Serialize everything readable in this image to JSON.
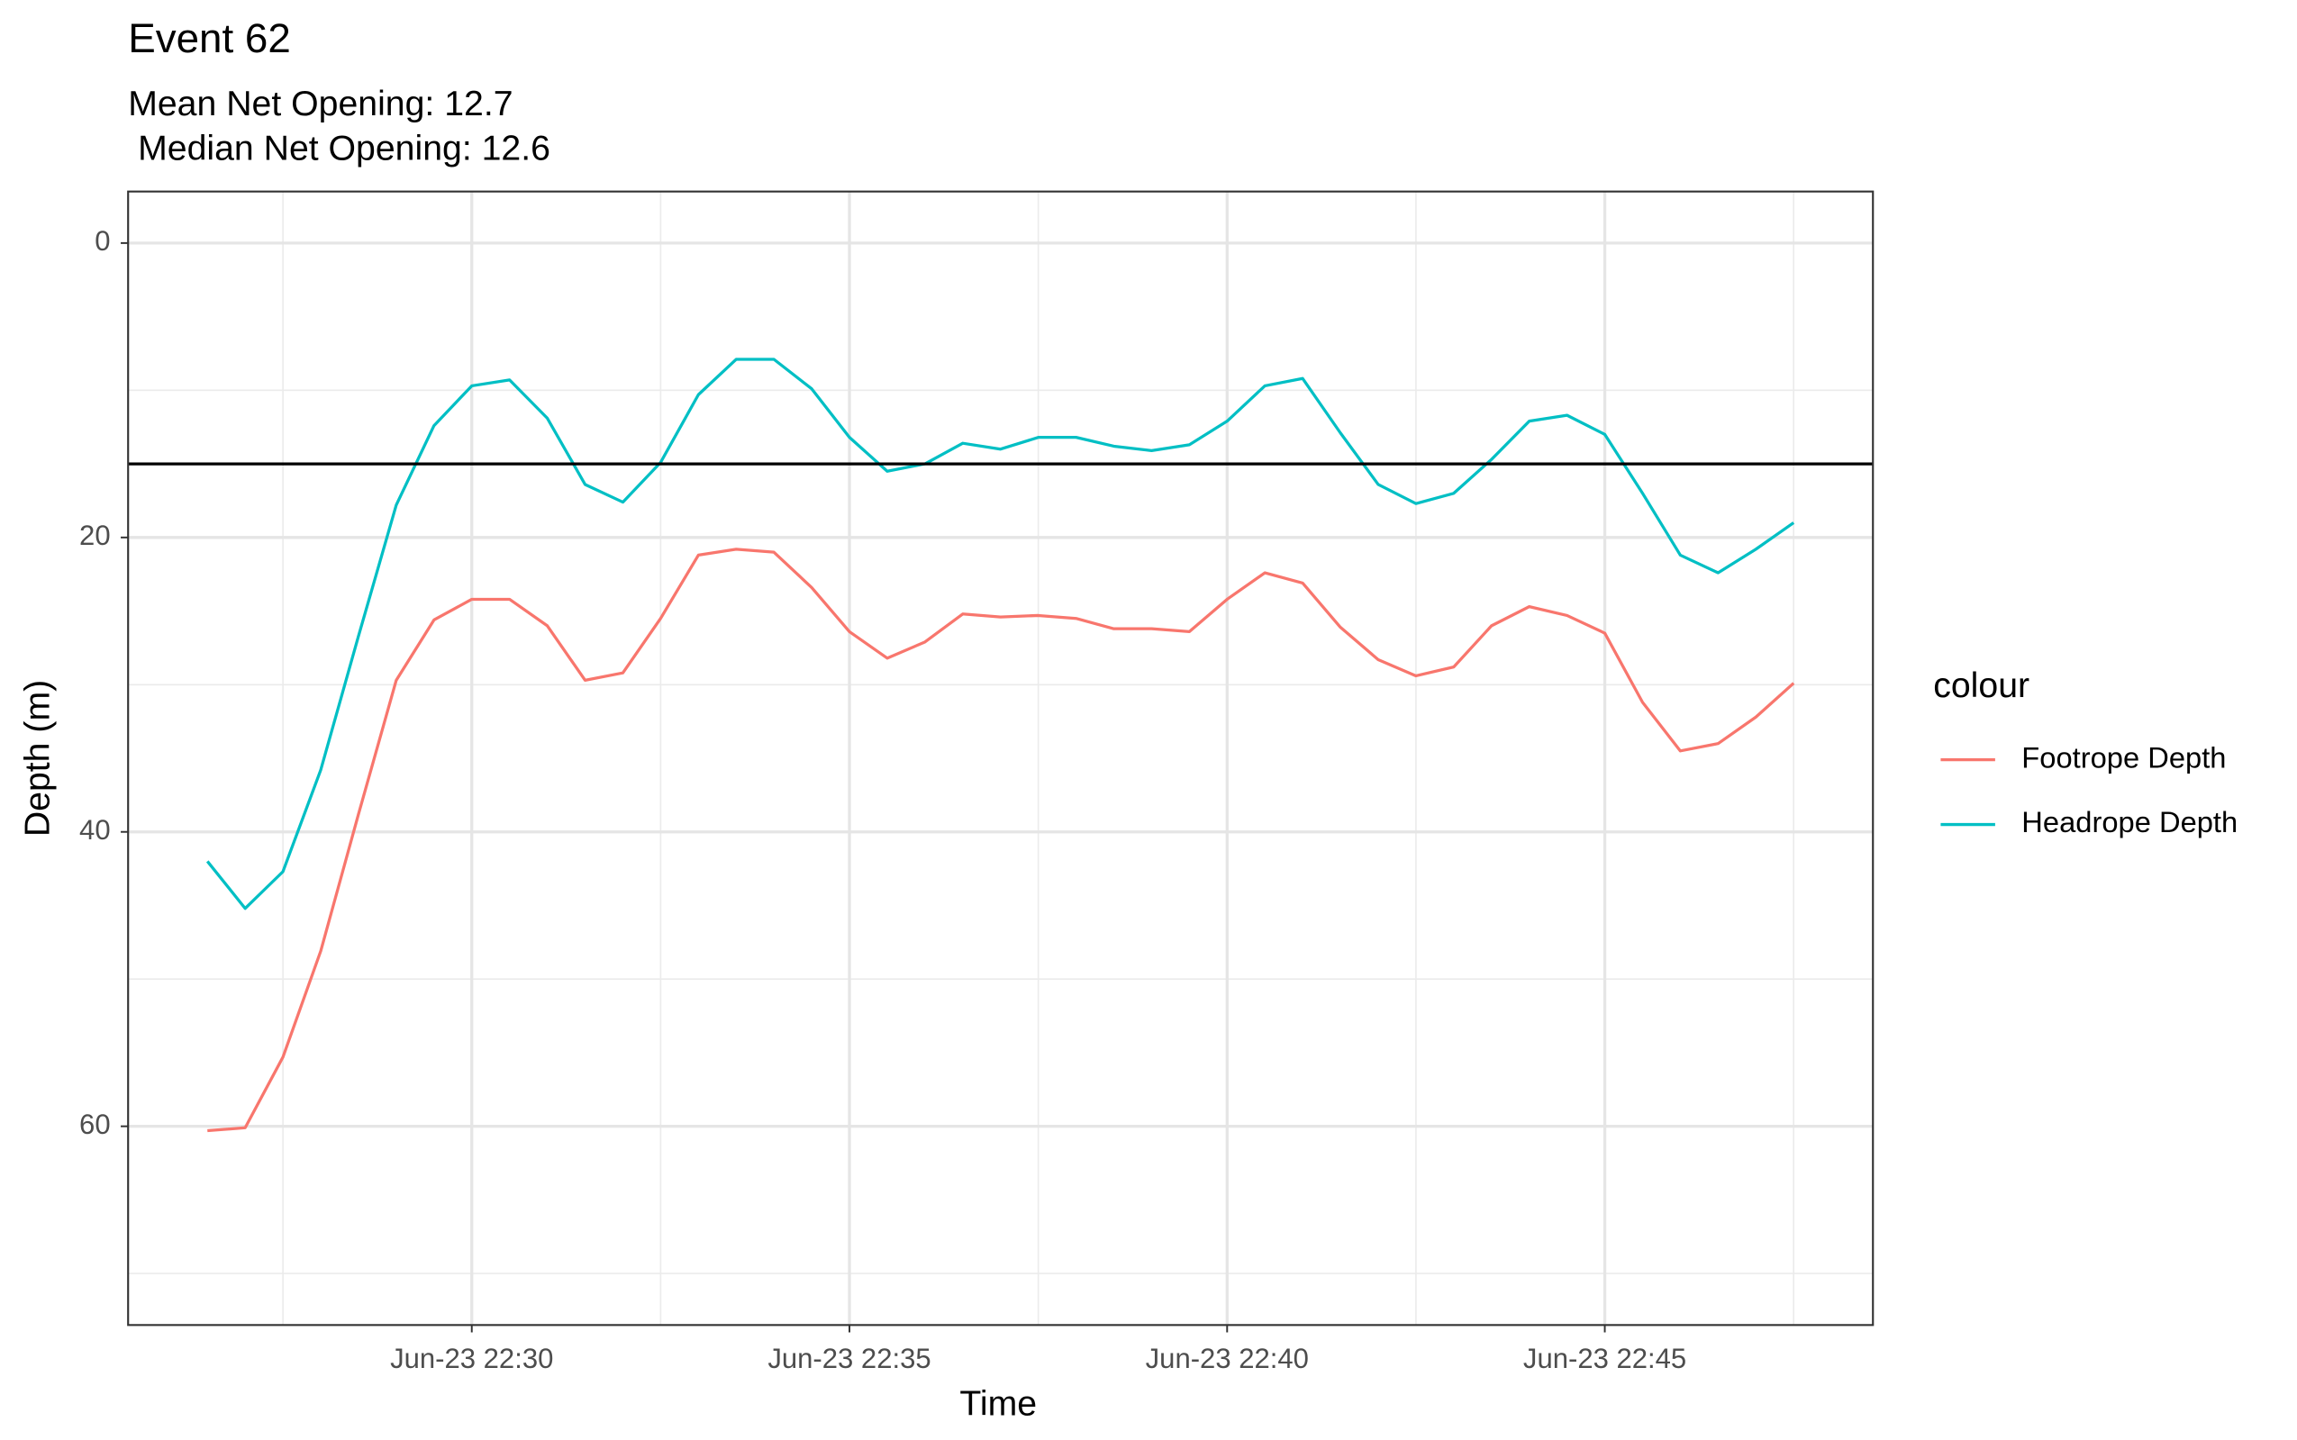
{
  "chart_data": {
    "type": "line",
    "title": "Event 62",
    "subtitle": [
      "Mean Net Opening: 12.7",
      " Median Net Opening: 12.6"
    ],
    "x_label": "Time",
    "y_label": "Depth (m)",
    "legend_title": "colour",
    "legend_position": "right",
    "grid": true,
    "y_reversed": true,
    "x": [
      26.5,
      27,
      27.5,
      28,
      28.5,
      29,
      29.5,
      30,
      30.5,
      31,
      31.5,
      32,
      32.5,
      33,
      33.5,
      34,
      34.5,
      35,
      35.5,
      36,
      36.5,
      37,
      37.5,
      38,
      38.5,
      39,
      39.5,
      40,
      40.5,
      41,
      41.5,
      42,
      42.5,
      43,
      43.5,
      44,
      44.5,
      45,
      45.5,
      46,
      46.5,
      47,
      47.5
    ],
    "xlim": [
      25.45,
      48.55
    ],
    "xticks": [
      {
        "value": 30,
        "label": "Jun-23 22:30"
      },
      {
        "value": 35,
        "label": "Jun-23 22:35"
      },
      {
        "value": 40,
        "label": "Jun-23 22:40"
      },
      {
        "value": 45,
        "label": "Jun-23 22:45"
      }
    ],
    "xminor": [
      27.5,
      32.5,
      37.5,
      42.5,
      47.5
    ],
    "ylim": [
      -3.5,
      73.5
    ],
    "yticks": [
      0,
      20,
      40,
      60
    ],
    "yminor": [
      10,
      30,
      50,
      70
    ],
    "hline": {
      "value": 15,
      "color": "#000000"
    },
    "series": [
      {
        "name": "Footrope Depth",
        "color": "#f8766d",
        "values": [
          60.3,
          60.1,
          55.3,
          48.1,
          38.8,
          29.7,
          25.6,
          24.2,
          24.2,
          26.0,
          29.7,
          29.2,
          25.5,
          21.2,
          20.8,
          21.0,
          23.4,
          26.4,
          28.2,
          27.1,
          25.2,
          25.4,
          25.3,
          25.5,
          26.2,
          26.2,
          26.4,
          24.2,
          22.4,
          23.1,
          26.1,
          28.3,
          29.4,
          28.8,
          26.0,
          24.7,
          25.3,
          26.5,
          31.2,
          34.5,
          34.0,
          32.2,
          29.9
        ]
      },
      {
        "name": "Headrope Depth",
        "color": "#00bfc4",
        "values": [
          42.0,
          45.2,
          42.7,
          35.8,
          26.7,
          17.8,
          12.4,
          9.7,
          9.3,
          11.9,
          16.4,
          17.6,
          14.9,
          10.3,
          7.9,
          7.9,
          9.9,
          13.2,
          15.5,
          15.0,
          13.6,
          14.0,
          13.2,
          13.2,
          13.8,
          14.1,
          13.7,
          12.1,
          9.7,
          9.2,
          12.9,
          16.4,
          17.7,
          17.0,
          14.7,
          12.1,
          11.7,
          13.0,
          17.0,
          21.2,
          22.4,
          20.8,
          19.0
        ]
      }
    ]
  }
}
